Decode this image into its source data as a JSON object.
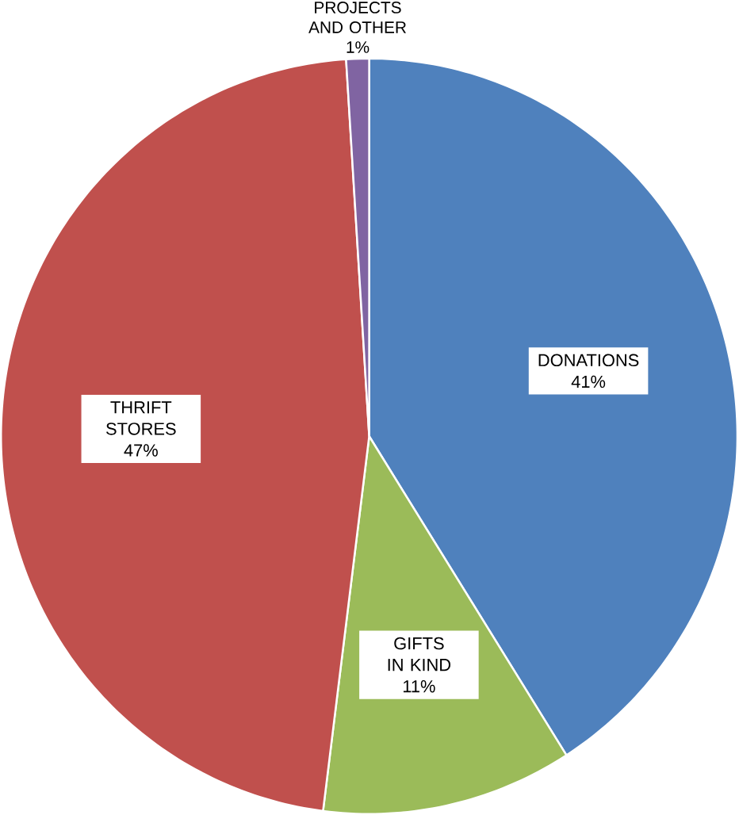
{
  "chart_data": {
    "type": "pie",
    "categories": [
      "DONATIONS",
      "GIFTS IN KIND",
      "THRIFT STORES",
      "PROJECTS AND OTHER"
    ],
    "values": [
      41,
      11,
      47,
      1
    ],
    "colors": [
      "#4f81bd",
      "#9bbb59",
      "#c0504d",
      "#8064a2"
    ],
    "value_labels": [
      "41%",
      "11%",
      "47%",
      "1%"
    ]
  }
}
